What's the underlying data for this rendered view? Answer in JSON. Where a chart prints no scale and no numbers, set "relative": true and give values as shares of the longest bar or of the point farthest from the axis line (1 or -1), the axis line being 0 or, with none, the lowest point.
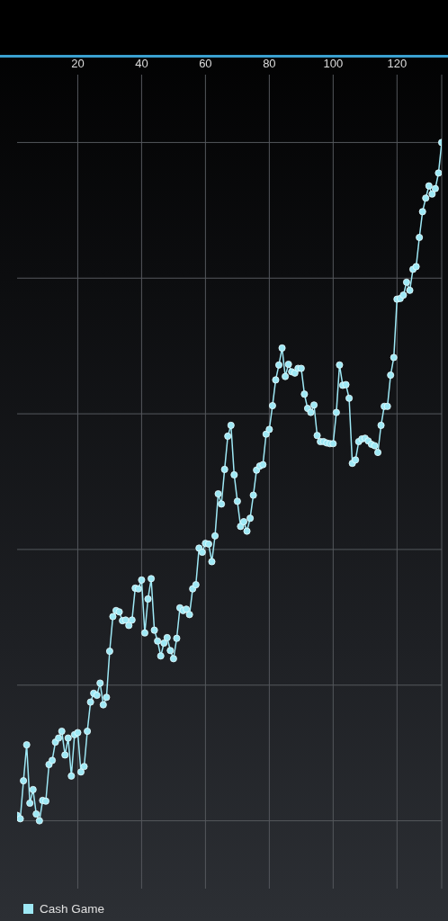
{
  "chart_data": {
    "type": "line",
    "relative": true,
    "tick_labels": "x",
    "grid": true,
    "legend": "bottom left",
    "marker": "circle",
    "xlim": [
      1,
      134
    ],
    "xticks": [
      20,
      40,
      60,
      80,
      100,
      120,
      {
        "value": 134,
        "label": null
      }
    ],
    "x": [
      1,
      2,
      3,
      4,
      5,
      6,
      7,
      8,
      9,
      10,
      11,
      12,
      13,
      14,
      15,
      16,
      17,
      18,
      19,
      20,
      21,
      22,
      23,
      24,
      25,
      26,
      27,
      28,
      29,
      30,
      31,
      32,
      33,
      34,
      35,
      36,
      37,
      38,
      39,
      40,
      41,
      42,
      43,
      44,
      45,
      46,
      47,
      48,
      49,
      50,
      51,
      52,
      53,
      54,
      55,
      56,
      57,
      58,
      59,
      60,
      61,
      62,
      63,
      64,
      65,
      66,
      67,
      68,
      69,
      70,
      71,
      72,
      73,
      74,
      75,
      76,
      77,
      78,
      79,
      80,
      81,
      82,
      83,
      84,
      85,
      86,
      87,
      88,
      89,
      90,
      91,
      92,
      93,
      94,
      95,
      96,
      97,
      98,
      99,
      100,
      101,
      102,
      103,
      104,
      105,
      106,
      107,
      108,
      109,
      110,
      111,
      112,
      113,
      114,
      115,
      116,
      117,
      118,
      119,
      120,
      121,
      122,
      123,
      124,
      125,
      126,
      127,
      128,
      129,
      130,
      131,
      132,
      133,
      134
    ],
    "series": [
      {
        "name": "Cash Game",
        "color": "#9ee8f5",
        "values": [
          0.008,
          0.003,
          0.059,
          0.112,
          0.026,
          0.046,
          0.01,
          0,
          0.03,
          0.029,
          0.083,
          0.089,
          0.116,
          0.122,
          0.132,
          0.097,
          0.122,
          0.066,
          0.127,
          0.13,
          0.072,
          0.08,
          0.132,
          0.175,
          0.188,
          0.185,
          0.203,
          0.171,
          0.182,
          0.25,
          0.301,
          0.31,
          0.308,
          0.295,
          0.296,
          0.288,
          0.296,
          0.343,
          0.342,
          0.355,
          0.277,
          0.327,
          0.357,
          0.281,
          0.265,
          0.243,
          0.262,
          0.27,
          0.251,
          0.239,
          0.269,
          0.314,
          0.31,
          0.312,
          0.304,
          0.342,
          0.348,
          0.402,
          0.396,
          0.409,
          0.408,
          0.382,
          0.42,
          0.482,
          0.467,
          0.518,
          0.567,
          0.583,
          0.51,
          0.471,
          0.434,
          0.441,
          0.427,
          0.446,
          0.48,
          0.517,
          0.523,
          0.525,
          0.57,
          0.577,
          0.612,
          0.65,
          0.672,
          0.697,
          0.655,
          0.673,
          0.662,
          0.66,
          0.667,
          0.667,
          0.629,
          0.608,
          0.602,
          0.613,
          0.568,
          0.559,
          0.559,
          0.557,
          0.556,
          0.556,
          0.602,
          0.672,
          0.642,
          0.643,
          0.623,
          0.527,
          0.532,
          0.559,
          0.563,
          0.564,
          0.56,
          0.555,
          0.553,
          0.543,
          0.583,
          0.611,
          0.611,
          0.657,
          0.683,
          0.769,
          0.77,
          0.775,
          0.794,
          0.782,
          0.813,
          0.817,
          0.86,
          0.898,
          0.918,
          0.936,
          0.924,
          0.932,
          0.955,
          1
        ]
      }
    ]
  }
}
